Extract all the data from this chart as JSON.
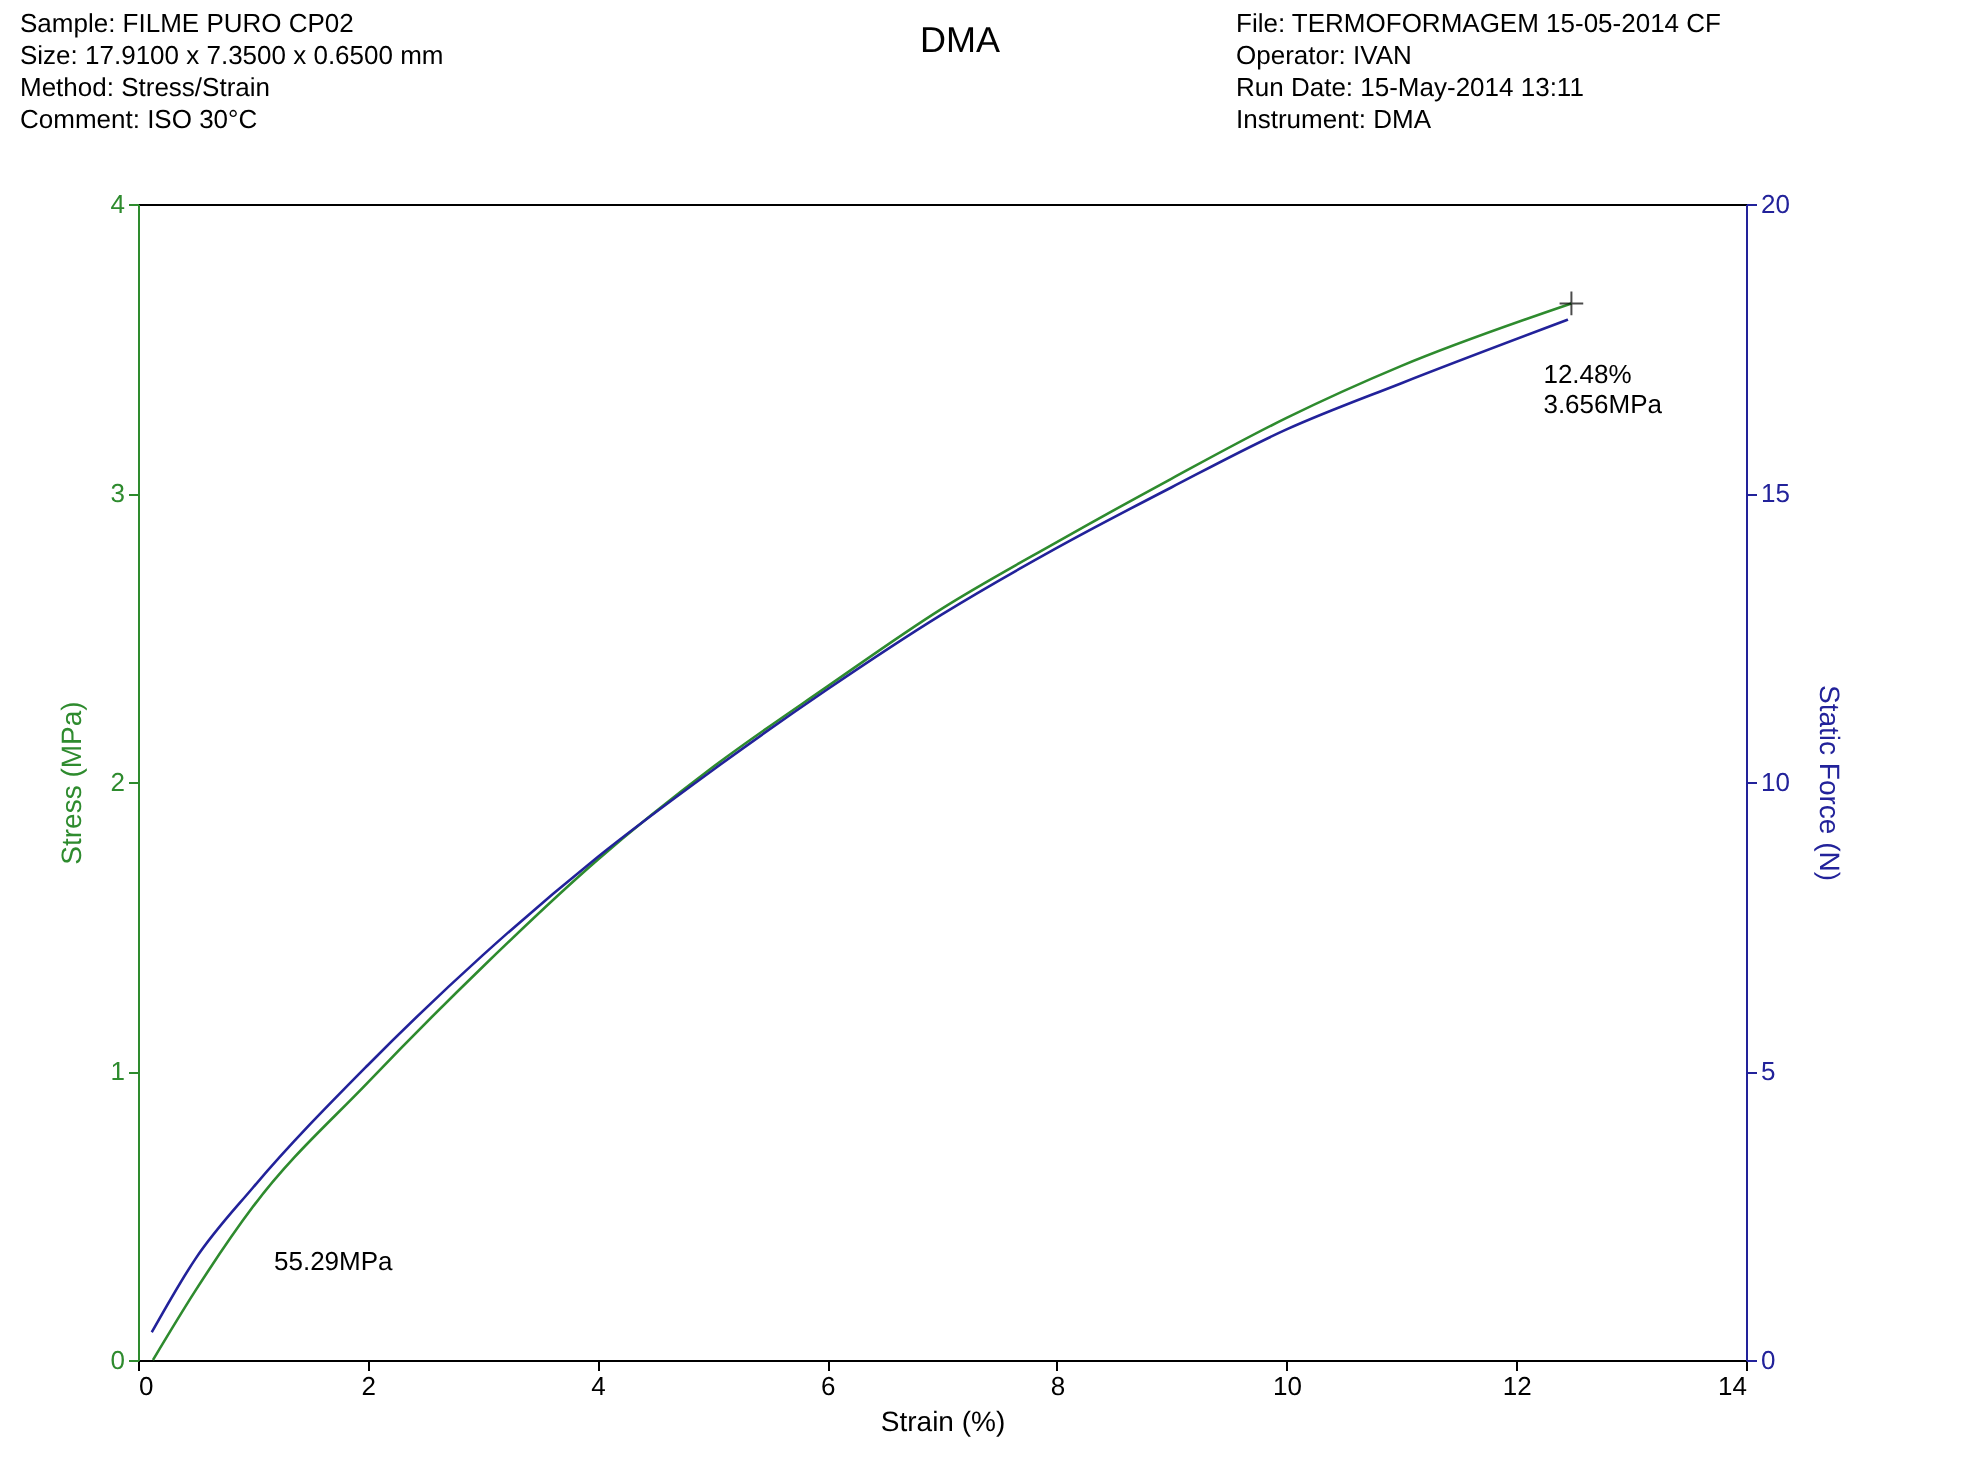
{
  "chart_data": {
    "type": "line",
    "title": "DMA",
    "xlabel": "Strain (%)",
    "ylabel": "Stress (MPa)",
    "y2label": "Static Force (N)",
    "annotations": [
      "Sample: FILME PURO CP02",
      "Size:  17.9100 x 7.3500 x 0.6500 mm",
      "Method: Stress/Strain",
      "Comment: ISO 30°C",
      "File: TERMOFORMAGEM 15-05-2014 CF",
      "Operator: IVAN",
      "Run Date: 15-May-2014 13:11",
      "Instrument: DMA",
      {
        "text": "12.48%\n3.656MPa",
        "x": 12.48,
        "y": 3.656
      },
      "55.29MPa"
    ],
    "series": [
      {
        "color": "#2e8b2e",
        "x": [
          0.13,
          0.5,
          1,
          2,
          3,
          4,
          5,
          6,
          7,
          8,
          9,
          10,
          11,
          12.48
        ],
        "values": [
          0,
          0.24,
          0.53,
          0.96,
          1.36,
          1.73,
          2.05,
          2.33,
          2.6,
          2.83,
          3.05,
          3.26,
          3.44,
          3.656
        ]
      },
      {
        "color": "#22229a",
        "axis": "y2",
        "x": [
          0.12,
          0.5,
          1,
          2,
          3,
          4,
          5,
          6,
          7,
          8,
          9,
          10,
          11,
          12.45
        ],
        "values": [
          0.48,
          1.75,
          2.98,
          5.1,
          7.0,
          8.7,
          10.2,
          11.6,
          12.9,
          14.05,
          15.1,
          16.1,
          16.9,
          18.0
        ]
      }
    ],
    "xlim": [
      0,
      14
    ],
    "xticks": [
      0,
      2,
      4,
      6,
      8,
      10,
      12,
      14
    ],
    "ylim": [
      0,
      4
    ],
    "yticks": [
      0,
      1,
      2,
      3,
      4
    ],
    "y2lim": [
      0,
      20
    ],
    "y2ticks": [
      0,
      5,
      10,
      15,
      20
    ],
    "grid": false,
    "marker": "none",
    "line_style": "solid"
  }
}
